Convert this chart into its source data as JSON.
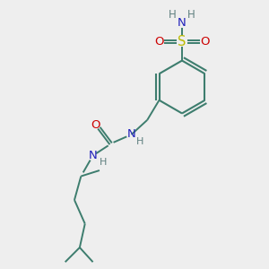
{
  "background_color": "#eeeeee",
  "bond_color": "#3d7d6e",
  "N_color": "#2222bb",
  "O_color": "#cc0000",
  "S_color": "#bbbb00",
  "H_color": "#608080",
  "font_size": 8.5,
  "figsize": [
    3.0,
    3.0
  ],
  "dpi": 100,
  "xlim": [
    0,
    10
  ],
  "ylim": [
    0,
    10
  ]
}
